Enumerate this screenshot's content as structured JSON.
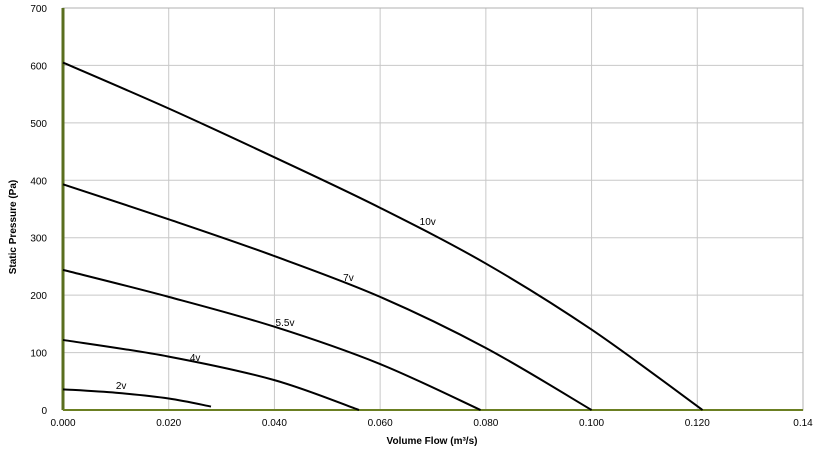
{
  "chart_data": {
    "type": "line",
    "title": "",
    "xlabel": "Volume Flow (m³/s)",
    "ylabel": "Static Pressure (Pa)",
    "xlim": [
      0,
      0.14
    ],
    "ylim": [
      0,
      700
    ],
    "x_ticks": [
      "0.000",
      "0.020",
      "0.040",
      "0.060",
      "0.080",
      "0.100",
      "0.120",
      "0.14"
    ],
    "y_ticks": [
      "0",
      "100",
      "200",
      "300",
      "400",
      "500",
      "600",
      "700"
    ],
    "grid": true,
    "legend": "none",
    "series": [
      {
        "name": "10v",
        "label_at": [
          0.069,
          322
        ],
        "points": [
          [
            0,
            605
          ],
          [
            0.02,
            525
          ],
          [
            0.04,
            440
          ],
          [
            0.06,
            352
          ],
          [
            0.08,
            255
          ],
          [
            0.1,
            140
          ],
          [
            0.121,
            0
          ]
        ]
      },
      {
        "name": "7v",
        "label_at": [
          0.054,
          225
        ],
        "points": [
          [
            0,
            393
          ],
          [
            0.02,
            332
          ],
          [
            0.04,
            268
          ],
          [
            0.06,
            197
          ],
          [
            0.08,
            108
          ],
          [
            0.1,
            0
          ]
        ]
      },
      {
        "name": "5.5v",
        "label_at": [
          0.042,
          146
        ],
        "points": [
          [
            0,
            244
          ],
          [
            0.02,
            197
          ],
          [
            0.04,
            145
          ],
          [
            0.06,
            80
          ],
          [
            0.079,
            0
          ]
        ]
      },
      {
        "name": "4v",
        "label_at": [
          0.025,
          85
        ],
        "points": [
          [
            0,
            122
          ],
          [
            0.02,
            93
          ],
          [
            0.04,
            52
          ],
          [
            0.056,
            0
          ]
        ]
      },
      {
        "name": "2v",
        "label_at": [
          0.011,
          37
        ],
        "points": [
          [
            0,
            36
          ],
          [
            0.01,
            30
          ],
          [
            0.02,
            20
          ],
          [
            0.028,
            6
          ]
        ]
      }
    ]
  }
}
